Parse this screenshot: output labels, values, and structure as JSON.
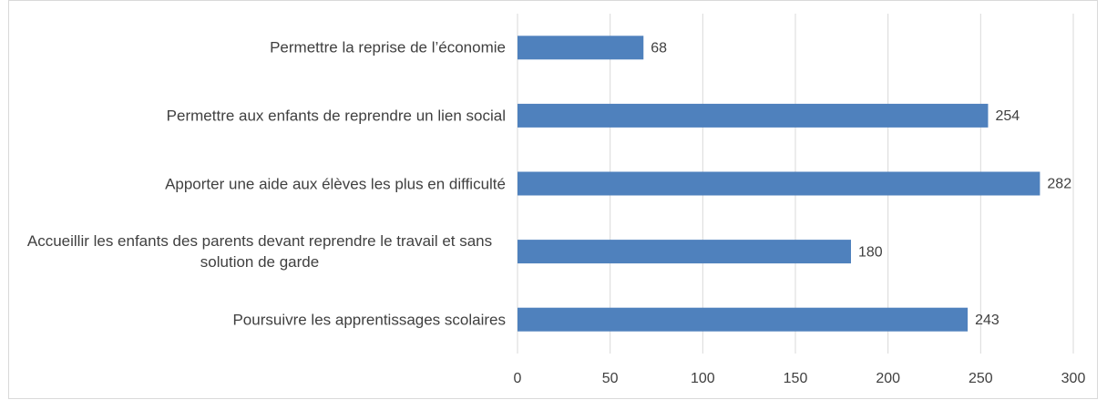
{
  "chart_data": {
    "type": "barh",
    "categories": [
      "Permettre la reprise de l’économie",
      "Permettre aux enfants de reprendre un lien social",
      "Apporter une aide aux élèves les plus en difficulté",
      "Accueillir les enfants des parents devant reprendre le travail et sans solution de garde",
      "Poursuivre les apprentissages scolaires"
    ],
    "values": [
      68,
      254,
      282,
      180,
      243
    ],
    "color": "#4f81bd",
    "xlim": [
      0,
      300
    ],
    "xticks": [
      0,
      50,
      100,
      150,
      200,
      250,
      300
    ],
    "grid": true
  }
}
